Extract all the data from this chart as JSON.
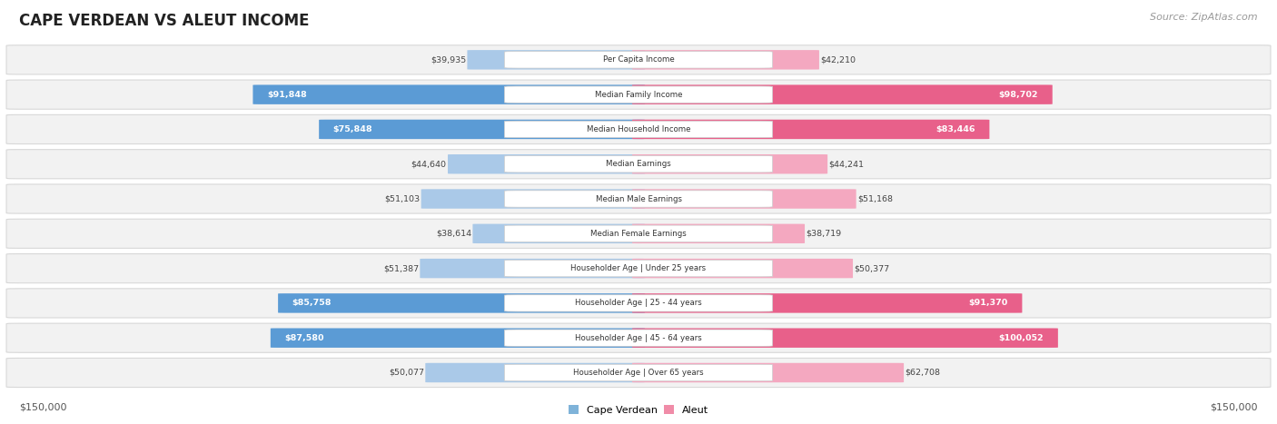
{
  "title": "CAPE VERDEAN VS ALEUT INCOME",
  "source": "Source: ZipAtlas.com",
  "max_val": 150000,
  "categories": [
    "Per Capita Income",
    "Median Family Income",
    "Median Household Income",
    "Median Earnings",
    "Median Male Earnings",
    "Median Female Earnings",
    "Householder Age | Under 25 years",
    "Householder Age | 25 - 44 years",
    "Householder Age | 45 - 64 years",
    "Householder Age | Over 65 years"
  ],
  "cape_verdean": [
    39935,
    91848,
    75848,
    44640,
    51103,
    38614,
    51387,
    85758,
    87580,
    50077
  ],
  "aleut": [
    42210,
    98702,
    83446,
    44241,
    51168,
    38719,
    50377,
    91370,
    100052,
    62708
  ],
  "cv_labels": [
    "$39,935",
    "$91,848",
    "$75,848",
    "$44,640",
    "$51,103",
    "$38,614",
    "$51,387",
    "$85,758",
    "$87,580",
    "$50,077"
  ],
  "aleut_labels": [
    "$42,210",
    "$98,702",
    "$83,446",
    "$44,241",
    "$51,168",
    "$38,719",
    "$50,377",
    "$91,370",
    "$100,052",
    "$62,708"
  ],
  "cv_color_light": "#aac9e8",
  "cv_color_dark": "#5b9bd5",
  "aleut_color_light": "#f4a8c0",
  "aleut_color_dark": "#e8608a",
  "row_bg": "#f2f2f2",
  "row_border": "#d8d8d8",
  "title_color": "#222222",
  "source_color": "#999999",
  "legend_cv_color": "#7fb3d9",
  "legend_aleut_color": "#f08ca8",
  "cv_dark_threshold": 70000,
  "aleut_dark_threshold": 70000,
  "bottom_label_left": "$150,000",
  "bottom_label_right": "$150,000"
}
